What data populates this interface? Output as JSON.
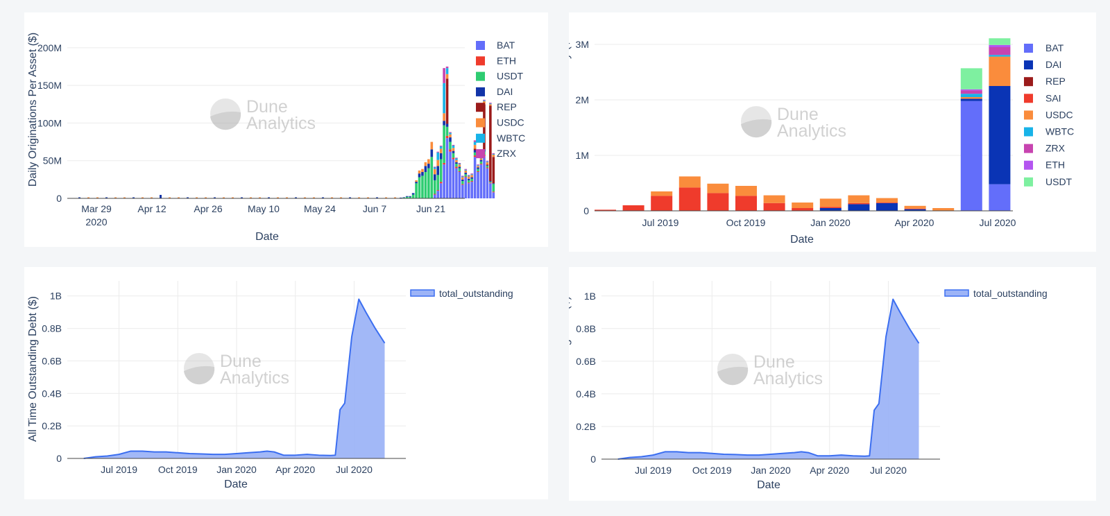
{
  "watermark": {
    "line1": "Dune",
    "line2": "Analytics"
  },
  "chart_data": [
    {
      "type": "bar",
      "stacked": true,
      "title": "",
      "xlabel": "Date",
      "ylabel": "Daily Originations Per Asset ($)",
      "ylim": [
        0,
        210
      ],
      "y_unit": "M",
      "ytick_labels": [
        "0",
        "50M",
        "100M",
        "150M",
        "200M"
      ],
      "ytick_values": [
        0,
        50,
        100,
        150,
        200
      ],
      "xtick_labels": [
        "Mar 29\n2020",
        "Apr 12",
        "Apr 26",
        "May 10",
        "May 24",
        "Jun 7",
        "Jun 21"
      ],
      "legend": [
        "BAT",
        "ETH",
        "USDT",
        "DAI",
        "REP",
        "USDC",
        "WBTC",
        "ZRX"
      ],
      "legend_colors": [
        "#636efa",
        "#ef3b2c",
        "#2ecc71",
        "#1234a8",
        "#9b1b1b",
        "#fa8c3c",
        "#18b3e8",
        "#c744b0"
      ],
      "series": [
        {
          "name": "BAT",
          "values": [
            0,
            0,
            0,
            0,
            0,
            0,
            0,
            0,
            0,
            0,
            0,
            5,
            10,
            20,
            45,
            80,
            62,
            52,
            40,
            35,
            18,
            28,
            20,
            22,
            55,
            35,
            45,
            56,
            40,
            20,
            8
          ]
        },
        {
          "name": "ETH",
          "values": [
            0,
            0,
            0,
            0,
            0,
            0,
            0,
            0,
            0,
            0,
            0,
            1,
            1,
            2,
            2,
            3,
            3,
            2,
            2,
            1,
            1,
            1,
            1,
            1,
            2,
            1,
            1,
            2,
            1,
            1,
            1
          ]
        },
        {
          "name": "USDT",
          "values": [
            0.5,
            1,
            2,
            2,
            5,
            20,
            28,
            30,
            35,
            40,
            55,
            18,
            20,
            30,
            50,
            12,
            10,
            6,
            4,
            4,
            4,
            3,
            3,
            3,
            4,
            3,
            3,
            4,
            2,
            1,
            10
          ]
        },
        {
          "name": "DAI",
          "values": [
            0.5,
            0.5,
            1,
            1,
            2,
            2,
            5,
            5,
            8,
            6,
            10,
            8,
            12,
            8,
            6,
            4,
            6,
            3,
            2,
            2,
            2,
            2,
            2,
            2,
            3,
            2,
            2,
            3,
            1,
            1,
            1
          ]
        },
        {
          "name": "REP",
          "values": [
            0,
            0,
            0,
            0,
            0,
            0,
            0,
            0,
            0,
            0,
            0,
            0,
            0,
            0,
            0,
            60,
            0,
            0,
            0,
            0,
            0,
            0,
            0,
            0,
            2,
            0,
            0,
            60,
            1,
            100,
            35
          ]
        },
        {
          "name": "USDC",
          "values": [
            0,
            0,
            0,
            0,
            0,
            2,
            4,
            4,
            5,
            6,
            10,
            7,
            8,
            6,
            10,
            6,
            4,
            4,
            3,
            3,
            3,
            3,
            3,
            3,
            5,
            2,
            2,
            4,
            3,
            2,
            3
          ]
        },
        {
          "name": "WBTC",
          "values": [
            0,
            0,
            0,
            0,
            0,
            0,
            0,
            0,
            0,
            0,
            0,
            2,
            10,
            3,
            40,
            8,
            2,
            3,
            2,
            1,
            1,
            1,
            1,
            1,
            4,
            1,
            1,
            1,
            1,
            1,
            1
          ]
        },
        {
          "name": "ZRX",
          "values": [
            0,
            0,
            0,
            0,
            0,
            0,
            0,
            0,
            0,
            0,
            0,
            1,
            1,
            1,
            20,
            2,
            1,
            1,
            1,
            1,
            1,
            1,
            1,
            1,
            2,
            1,
            1,
            1,
            1,
            1,
            1
          ]
        }
      ]
    },
    {
      "type": "bar",
      "stacked": true,
      "title": "",
      "xlabel": "Date",
      "ylabel": "Interest Accrued Per Asset Per Day ($",
      "ylim": [
        0,
        3.2
      ],
      "y_unit": "M",
      "ytick_labels": [
        "0",
        "1M",
        "2M",
        "3M"
      ],
      "ytick_values": [
        0,
        1,
        2,
        3
      ],
      "xtick_labels": [
        "Jul 2019",
        "Oct 2019",
        "Jan 2020",
        "Apr 2020",
        "Jul 2020"
      ],
      "legend": [
        "BAT",
        "DAI",
        "REP",
        "SAI",
        "USDC",
        "WBTC",
        "ZRX",
        "ETH",
        "USDT"
      ],
      "legend_colors": [
        "#636efa",
        "#0a34b5",
        "#9b1b1b",
        "#ef3b2c",
        "#fa8c3c",
        "#18b3e8",
        "#c744b0",
        "#b455f0",
        "#7ef0a0"
      ],
      "series": [
        {
          "name": "BAT",
          "values": [
            0,
            0,
            0,
            0,
            0,
            0,
            0,
            0,
            0,
            0,
            0,
            0,
            0,
            1.98,
            0.48
          ]
        },
        {
          "name": "DAI",
          "values": [
            0,
            0,
            0,
            0,
            0,
            0,
            0,
            0,
            0.05,
            0.12,
            0.14,
            0.03,
            0,
            0.04,
            1.77
          ]
        },
        {
          "name": "REP",
          "values": [
            0,
            0,
            0,
            0,
            0,
            0,
            0,
            0,
            0,
            0,
            0,
            0,
            0,
            0,
            0
          ]
        },
        {
          "name": "SAI",
          "values": [
            0.02,
            0.1,
            0.27,
            0.42,
            0.32,
            0.27,
            0.14,
            0.05,
            0.02,
            0.02,
            0.01,
            0.01,
            0,
            0,
            0
          ]
        },
        {
          "name": "USDC",
          "values": [
            0,
            0,
            0.08,
            0.2,
            0.17,
            0.18,
            0.14,
            0.1,
            0.15,
            0.14,
            0.08,
            0.05,
            0.05,
            0.03,
            0.53
          ]
        },
        {
          "name": "WBTC",
          "values": [
            0,
            0,
            0,
            0,
            0,
            0,
            0,
            0,
            0,
            0,
            0,
            0,
            0,
            0.06,
            0.03
          ]
        },
        {
          "name": "ZRX",
          "values": [
            0,
            0,
            0,
            0,
            0,
            0,
            0,
            0,
            0,
            0,
            0,
            0,
            0,
            0.06,
            0.14
          ]
        },
        {
          "name": "ETH",
          "values": [
            0,
            0,
            0,
            0,
            0,
            0,
            0,
            0,
            0,
            0,
            0,
            0,
            0,
            0.02,
            0.04
          ]
        },
        {
          "name": "USDT",
          "values": [
            0,
            0,
            0,
            0,
            0,
            0,
            0,
            0,
            0,
            0,
            0,
            0,
            0,
            0.38,
            0.12
          ]
        }
      ]
    },
    {
      "type": "area",
      "title": "",
      "xlabel": "Date",
      "ylabel": "All Time Outstanding Debt ($)",
      "ylim": [
        0,
        1.05
      ],
      "y_unit": "B",
      "ytick_labels": [
        "0",
        "0.2B",
        "0.4B",
        "0.6B",
        "0.8B",
        "1B"
      ],
      "ytick_values": [
        0,
        0.2,
        0.4,
        0.6,
        0.8,
        1.0
      ],
      "xtick_labels": [
        "Jul 2019",
        "Oct 2019",
        "Jan 2020",
        "Apr 2020",
        "Jul 2020"
      ],
      "xtick_values": [
        2019.5,
        2019.75,
        2020.0,
        2020.25,
        2020.5
      ],
      "xlim": [
        2019.28,
        2020.72
      ],
      "legend": [
        "total_outstanding"
      ],
      "color": "#3b6ef0",
      "x": [
        2019.35,
        2019.4,
        2019.45,
        2019.5,
        2019.55,
        2019.6,
        2019.65,
        2019.7,
        2019.75,
        2019.8,
        2019.85,
        2019.9,
        2019.95,
        2020.0,
        2020.05,
        2020.1,
        2020.13,
        2020.16,
        2020.2,
        2020.25,
        2020.3,
        2020.35,
        2020.4,
        2020.42,
        2020.44,
        2020.46,
        2020.49,
        2020.52,
        2020.55,
        2020.59,
        2020.63
      ],
      "y": [
        0,
        0.01,
        0.015,
        0.025,
        0.045,
        0.045,
        0.04,
        0.04,
        0.035,
        0.03,
        0.028,
        0.025,
        0.025,
        0.03,
        0.035,
        0.04,
        0.045,
        0.04,
        0.02,
        0.02,
        0.025,
        0.02,
        0.018,
        0.02,
        0.3,
        0.34,
        0.75,
        0.98,
        0.9,
        0.8,
        0.71
      ]
    },
    {
      "type": "area",
      "title": "",
      "xlabel": "Date",
      "ylabel": "All Time Outstanding Debt ($)",
      "ylim": [
        0,
        1.05
      ],
      "y_unit": "B",
      "ytick_labels": [
        "0",
        "0.2B",
        "0.4B",
        "0.6B",
        "0.8B",
        "1B"
      ],
      "ytick_values": [
        0,
        0.2,
        0.4,
        0.6,
        0.8,
        1.0
      ],
      "xtick_labels": [
        "Jul 2019",
        "Oct 2019",
        "Jan 2020",
        "Apr 2020",
        "Jul 2020"
      ],
      "xtick_values": [
        2019.5,
        2019.75,
        2020.0,
        2020.25,
        2020.5
      ],
      "xlim": [
        2019.28,
        2020.72
      ],
      "legend": [
        "total_outstanding"
      ],
      "color": "#3b6ef0",
      "x": [
        2019.35,
        2019.4,
        2019.45,
        2019.5,
        2019.55,
        2019.6,
        2019.65,
        2019.7,
        2019.75,
        2019.8,
        2019.85,
        2019.9,
        2019.95,
        2020.0,
        2020.05,
        2020.1,
        2020.13,
        2020.16,
        2020.2,
        2020.25,
        2020.3,
        2020.35,
        2020.4,
        2020.42,
        2020.44,
        2020.46,
        2020.49,
        2020.52,
        2020.55,
        2020.59,
        2020.63
      ],
      "y": [
        0,
        0.01,
        0.015,
        0.025,
        0.045,
        0.045,
        0.04,
        0.04,
        0.035,
        0.03,
        0.028,
        0.025,
        0.025,
        0.03,
        0.035,
        0.04,
        0.045,
        0.04,
        0.02,
        0.02,
        0.025,
        0.02,
        0.018,
        0.02,
        0.3,
        0.34,
        0.75,
        0.98,
        0.9,
        0.8,
        0.71
      ]
    }
  ]
}
